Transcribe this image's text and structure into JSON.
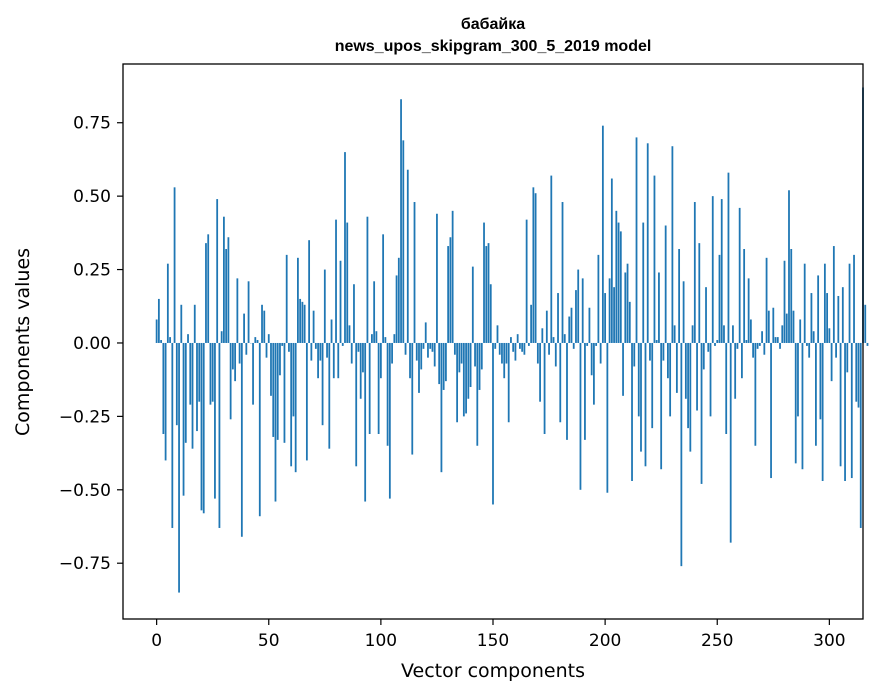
{
  "chart_data": {
    "type": "bar",
    "title": "бабайка",
    "subtitle": "news_upos_skipgram_300_5_2019 model",
    "xlabel": "Vector components",
    "ylabel": "Components values",
    "xlim": [
      -15,
      315
    ],
    "ylim": [
      -0.94,
      0.95
    ],
    "xticks": [
      0,
      50,
      100,
      150,
      200,
      250,
      300
    ],
    "yticks": [
      -0.75,
      -0.5,
      -0.25,
      0.0,
      0.25,
      0.5,
      0.75
    ],
    "xtick_labels": [
      "0",
      "50",
      "100",
      "150",
      "200",
      "250",
      "300"
    ],
    "ytick_labels": [
      "−0.75",
      "−0.50",
      "−0.25",
      "0.00",
      "0.25",
      "0.50",
      "0.75"
    ],
    "grid": false,
    "bar_color": "#1f77b4",
    "x_start": 0,
    "values": [
      0.08,
      0.15,
      0.01,
      -0.31,
      -0.4,
      0.27,
      0.02,
      -0.63,
      0.53,
      -0.28,
      -0.85,
      0.13,
      -0.52,
      -0.34,
      0.03,
      -0.21,
      -0.36,
      0.13,
      -0.3,
      -0.2,
      -0.57,
      -0.58,
      0.34,
      0.37,
      -0.21,
      -0.2,
      -0.53,
      0.49,
      -0.63,
      0.04,
      0.43,
      0.32,
      0.36,
      -0.26,
      -0.09,
      -0.13,
      0.22,
      -0.07,
      -0.66,
      0.1,
      -0.04,
      0.21,
      0.0,
      -0.21,
      0.02,
      0.01,
      -0.59,
      0.13,
      0.11,
      -0.05,
      0.03,
      -0.18,
      -0.32,
      -0.54,
      -0.33,
      -0.11,
      -0.01,
      -0.34,
      0.3,
      -0.03,
      -0.42,
      -0.25,
      -0.44,
      0.29,
      0.15,
      0.14,
      0.13,
      -0.4,
      0.35,
      -0.06,
      0.11,
      -0.02,
      -0.12,
      -0.06,
      -0.28,
      0.25,
      -0.05,
      -0.36,
      0.08,
      -0.12,
      0.42,
      -0.12,
      0.28,
      -0.01,
      0.65,
      0.41,
      0.06,
      -0.07,
      0.2,
      -0.42,
      -0.03,
      -0.19,
      -0.1,
      -0.54,
      0.43,
      -0.31,
      0.03,
      0.21,
      0.04,
      -0.31,
      -0.12,
      0.37,
      0.02,
      -0.35,
      -0.53,
      -0.07,
      0.03,
      0.23,
      0.29,
      0.83,
      0.69,
      -0.04,
      0.59,
      -0.12,
      -0.38,
      0.48,
      -0.06,
      -0.17,
      -0.09,
      -0.02,
      0.07,
      -0.05,
      -0.02,
      -0.03,
      -0.08,
      0.44,
      -0.14,
      -0.44,
      -0.16,
      -0.13,
      0.33,
      0.36,
      0.45,
      -0.04,
      -0.27,
      -0.1,
      -0.07,
      -0.25,
      -0.24,
      -0.19,
      -0.15,
      0.26,
      -0.08,
      -0.35,
      -0.16,
      -0.09,
      0.41,
      0.33,
      0.34,
      0.2,
      -0.55,
      -0.02,
      0.06,
      -0.04,
      -0.07,
      -0.12,
      -0.07,
      -0.27,
      0.02,
      -0.03,
      -0.06,
      0.03,
      -0.02,
      -0.03,
      -0.04,
      0.42,
      -0.01,
      0.13,
      0.53,
      0.51,
      -0.07,
      -0.2,
      0.05,
      -0.31,
      0.11,
      -0.04,
      0.57,
      0.02,
      -0.08,
      0.17,
      -0.27,
      0.48,
      0.03,
      -0.33,
      0.09,
      0.12,
      -0.02,
      0.18,
      0.25,
      -0.5,
      0.22,
      -0.33,
      -0.01,
      0.12,
      -0.11,
      -0.21,
      -0.01,
      0.3,
      -0.07,
      0.74,
      0.17,
      -0.51,
      0.22,
      0.56,
      0.19,
      0.45,
      0.41,
      0.38,
      -0.18,
      0.24,
      0.27,
      0.14,
      -0.47,
      -0.08,
      0.7,
      -0.25,
      -0.37,
      0.41,
      -0.42,
      0.68,
      -0.06,
      -0.29,
      0.57,
      0.01,
      0.24,
      -0.43,
      -0.06,
      0.4,
      -0.12,
      -0.25,
      0.67,
      0.06,
      -0.17,
      0.32,
      -0.76,
      0.21,
      -0.19,
      -0.29,
      -0.37,
      0.06,
      0.48,
      -0.23,
      0.34,
      -0.48,
      -0.09,
      0.19,
      -0.03,
      -0.25,
      0.5,
      -0.01,
      0.01,
      0.3,
      0.49,
      0.06,
      -0.31,
      0.58,
      -0.68,
      0.06,
      -0.19,
      -0.02,
      0.46,
      -0.12,
      0.32,
      0.01,
      0.22,
      0.08,
      -0.05,
      -0.35,
      -0.02,
      -0.01,
      0.04,
      -0.04,
      0.29,
      0.11,
      -0.46,
      0.12,
      0.02,
      0.02,
      -0.02,
      0.06,
      0.28,
      0.1,
      0.52,
      0.32,
      0.11,
      -0.41,
      -0.25,
      0.08,
      -0.43,
      0.27,
      -0.01,
      -0.05,
      0.17,
      0.04,
      -0.35,
      0.23,
      -0.26,
      -0.47,
      0.27,
      0.17,
      0.05,
      -0.13,
      0.33,
      -0.05,
      0.16,
      -0.42,
      0.19,
      -0.47,
      -0.1,
      0.27,
      -0.46,
      0.3,
      -0.2,
      -0.22,
      -0.63,
      0.87,
      0.13,
      -0.01
    ]
  }
}
